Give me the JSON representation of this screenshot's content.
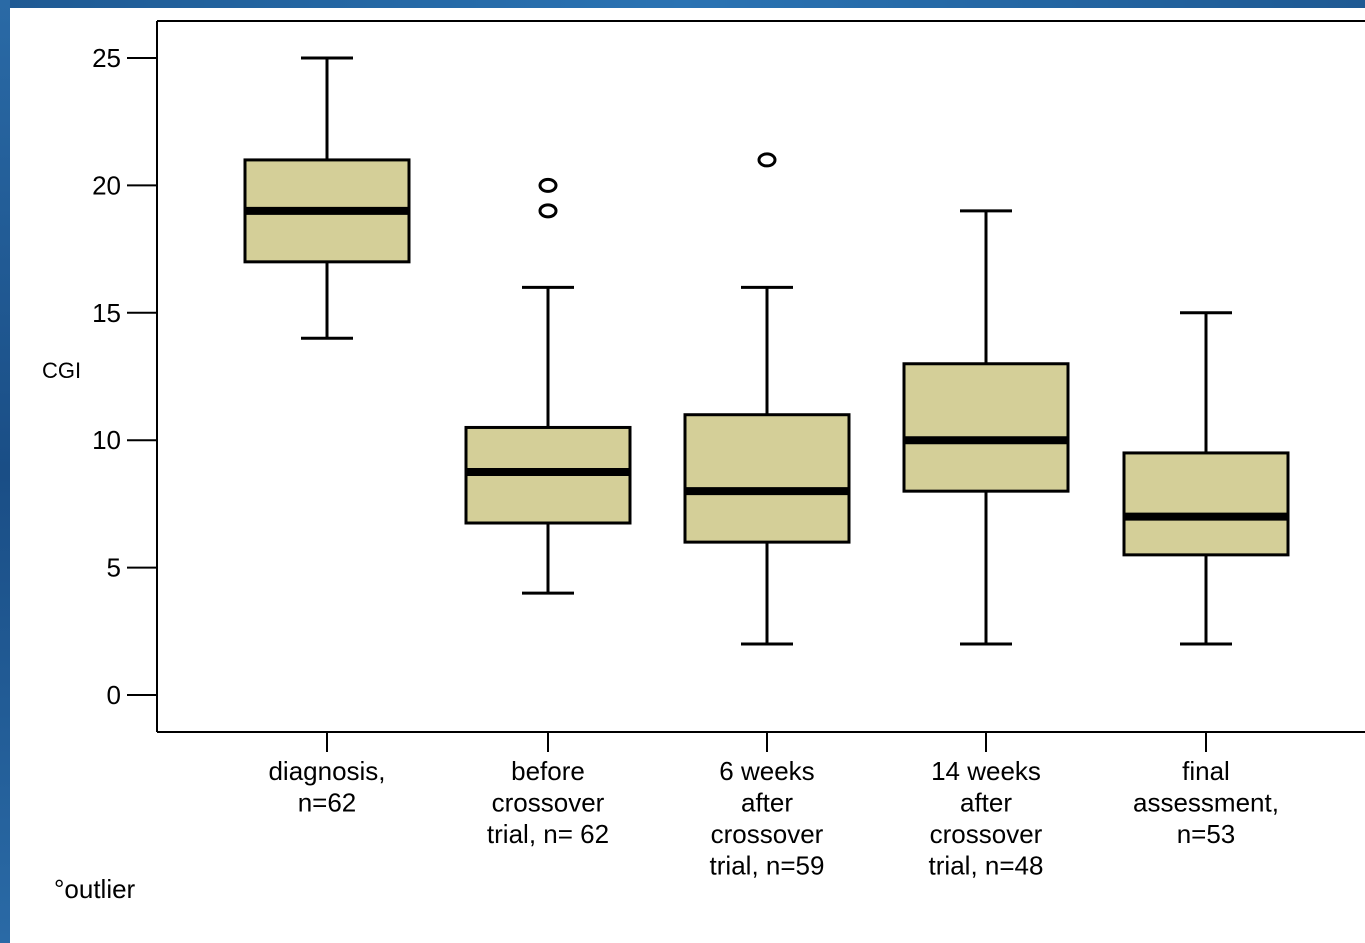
{
  "chart_data": {
    "type": "box",
    "ylabel": "CGI",
    "ylim": [
      0,
      26
    ],
    "yticks": [
      0,
      5,
      10,
      15,
      20,
      25
    ],
    "grid": false,
    "box_color": "#d4cf98",
    "categories": [
      {
        "label": [
          "diagnosis,",
          "n=62"
        ],
        "min": 14,
        "q1": 17,
        "median": 19,
        "q3": 21,
        "max": 25,
        "outliers": []
      },
      {
        "label": [
          "before",
          "crossover",
          "trial, n= 62"
        ],
        "min": 4,
        "q1": 6.75,
        "median": 8.75,
        "q3": 10.5,
        "max": 16,
        "outliers": [
          19,
          20
        ]
      },
      {
        "label": [
          "6 weeks",
          "after",
          "crossover",
          "trial, n=59"
        ],
        "min": 2,
        "q1": 6,
        "median": 8,
        "q3": 11,
        "max": 16,
        "outliers": [
          21
        ]
      },
      {
        "label": [
          "14 weeks",
          "after",
          "crossover",
          "trial, n=48"
        ],
        "min": 2,
        "q1": 8,
        "median": 10,
        "q3": 13,
        "max": 19,
        "outliers": []
      },
      {
        "label": [
          "final",
          "assessment,",
          "n=53"
        ],
        "min": 2,
        "q1": 5.5,
        "median": 7,
        "q3": 9.5,
        "max": 15,
        "outliers": []
      }
    ]
  },
  "footnote": "°outlier"
}
